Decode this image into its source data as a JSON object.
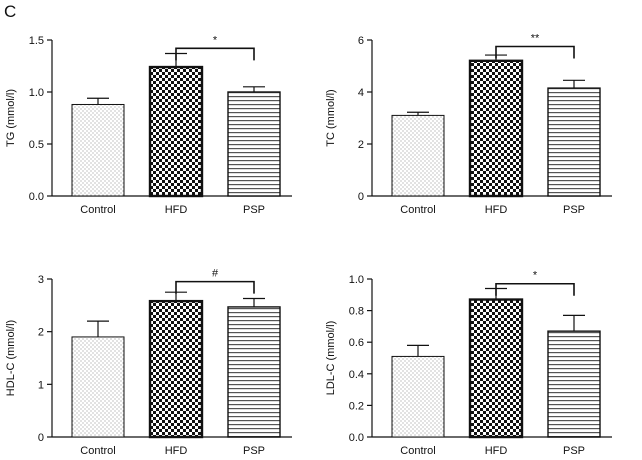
{
  "figure": {
    "panel_label": "C"
  },
  "chart_data": [
    {
      "type": "bar",
      "title": "",
      "xlabel": "",
      "ylabel": "TG (mmol/l)",
      "categories": [
        "Control",
        "HFD",
        "PSP"
      ],
      "values": [
        0.88,
        1.24,
        1.0
      ],
      "errors": [
        0.06,
        0.13,
        0.05
      ],
      "ylim": [
        0,
        1.5
      ],
      "yticks": [
        "0.0",
        "0.5",
        "1.0",
        "1.5"
      ],
      "significance": [
        {
          "from": "HFD",
          "to": "PSP",
          "label": "*",
          "y": 1.42
        }
      ]
    },
    {
      "type": "bar",
      "title": "",
      "xlabel": "",
      "ylabel": "TC (mmol/l)",
      "categories": [
        "Control",
        "HFD",
        "PSP"
      ],
      "values": [
        3.1,
        5.2,
        4.15
      ],
      "errors": [
        0.12,
        0.22,
        0.3
      ],
      "ylim": [
        0,
        6
      ],
      "yticks": [
        "0",
        "2",
        "4",
        "6"
      ],
      "significance": [
        {
          "from": "HFD",
          "to": "PSP",
          "label": "**",
          "y": 5.75
        }
      ]
    },
    {
      "type": "bar",
      "title": "",
      "xlabel": "",
      "ylabel": "HDL-C (mmol/l)",
      "categories": [
        "Control",
        "HFD",
        "PSP"
      ],
      "values": [
        1.9,
        2.58,
        2.47
      ],
      "errors": [
        0.3,
        0.17,
        0.16
      ],
      "ylim": [
        0,
        3
      ],
      "yticks": [
        "0",
        "1",
        "2",
        "3"
      ],
      "significance": [
        {
          "from": "HFD",
          "to": "PSP",
          "label": "#",
          "y": 2.95
        }
      ]
    },
    {
      "type": "bar",
      "title": "",
      "xlabel": "",
      "ylabel": "LDL-C (mmol/l)",
      "categories": [
        "Control",
        "HFD",
        "PSP"
      ],
      "values": [
        0.51,
        0.87,
        0.67
      ],
      "errors": [
        0.07,
        0.07,
        0.1
      ],
      "ylim": [
        0,
        1.0
      ],
      "yticks": [
        "0.0",
        "0.2",
        "0.4",
        "0.6",
        "0.8",
        "1.0"
      ],
      "significance": [
        {
          "from": "HFD",
          "to": "PSP",
          "label": "*",
          "y": 0.97
        }
      ]
    }
  ]
}
